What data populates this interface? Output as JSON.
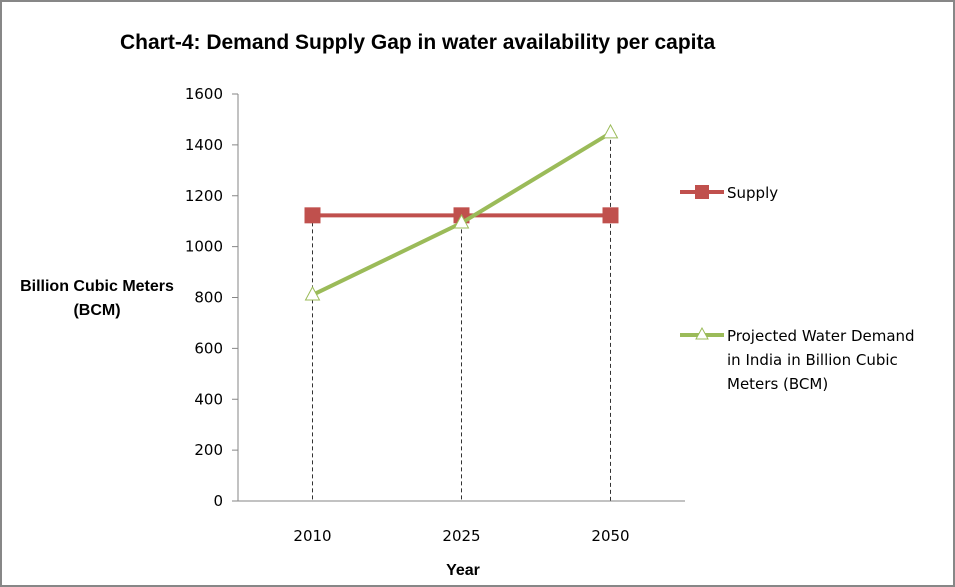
{
  "chart_data": {
    "type": "line",
    "title": "Chart-4: Demand Supply Gap in water availability per capita",
    "xlabel": "Year",
    "ylabel_lines": [
      "Billion Cubic Meters",
      "(BCM)"
    ],
    "categories": [
      "2010",
      "2025",
      "2050"
    ],
    "ylim": [
      0,
      1600
    ],
    "yticks": [
      0,
      200,
      400,
      600,
      800,
      1000,
      1200,
      1400,
      1600
    ],
    "grid": false,
    "drop_lines": true,
    "legend_position": "right",
    "series": [
      {
        "name": "Supply",
        "legend_lines": [
          "Supply"
        ],
        "values": [
          1123,
          1123,
          1123
        ],
        "color": "#C0504D",
        "marker": "square"
      },
      {
        "name": "Projected Water Demand in India in Billion Cubic Meters (BCM)",
        "legend_lines": [
          "Projected Water Demand",
          "in India in Billion Cubic",
          "Meters (BCM)"
        ],
        "values": [
          810,
          1093,
          1447
        ],
        "color": "#9BBB59",
        "marker": "triangle-open"
      }
    ]
  }
}
